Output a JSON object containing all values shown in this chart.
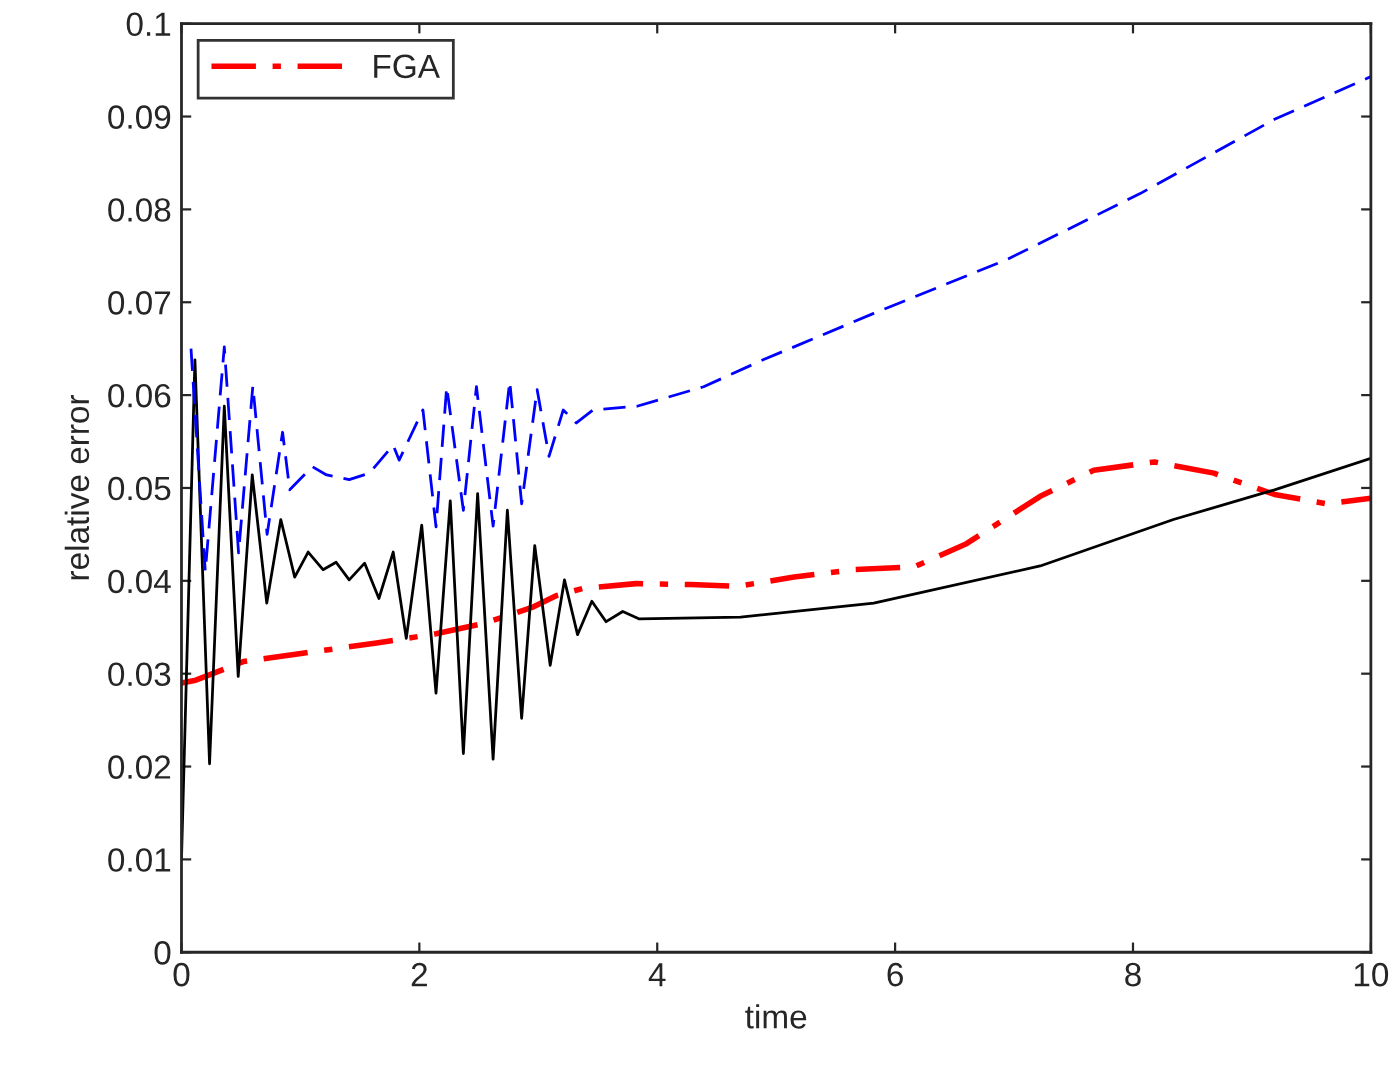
{
  "chart_data": {
    "type": "line",
    "xlabel": "time",
    "ylabel": "relative error",
    "xlim": [
      0,
      10
    ],
    "ylim": [
      0,
      0.1
    ],
    "xticks": [
      0,
      2,
      4,
      6,
      8,
      10
    ],
    "yticks": [
      0,
      0.01,
      0.02,
      0.03,
      0.04,
      0.05,
      0.06,
      0.07,
      0.08,
      0.09,
      0.1
    ],
    "grid": false,
    "legend": "top left",
    "series": [
      {
        "name": "FGA",
        "color": "#ff0000",
        "line_style": "dashdot",
        "x": [
          0,
          0.12,
          0.52,
          1.02,
          1.64,
          2.14,
          2.54,
          2.96,
          3.15,
          3.38,
          3.82,
          4.28,
          4.67,
          5.15,
          5.65,
          6.16,
          6.6,
          7.22,
          7.67,
          8.18,
          8.68,
          9.19,
          9.63,
          10
        ],
        "values": [
          0.029,
          0.0293,
          0.0313,
          0.0322,
          0.0333,
          0.0343,
          0.0354,
          0.0372,
          0.0384,
          0.0392,
          0.0397,
          0.0396,
          0.0394,
          0.0404,
          0.0412,
          0.0415,
          0.044,
          0.0491,
          0.0519,
          0.0528,
          0.0516,
          0.0493,
          0.0483,
          0.0489
        ]
      },
      {
        "color": "#000000",
        "line_style": "solid",
        "x": [
          0,
          0.113,
          0.236,
          0.36,
          0.477,
          0.595,
          0.717,
          0.835,
          0.952,
          1.065,
          1.19,
          1.3,
          1.41,
          1.54,
          1.66,
          1.78,
          1.89,
          2.02,
          2.14,
          2.26,
          2.37,
          2.49,
          2.62,
          2.74,
          2.86,
          2.97,
          3.1,
          3.22,
          3.33,
          3.45,
          3.57,
          3.71,
          3.85,
          4.7,
          5.82,
          7.22,
          8.34,
          9.19,
          10
        ],
        "values": [
          0.01,
          0.0638,
          0.0203,
          0.0588,
          0.0297,
          0.0514,
          0.0376,
          0.0466,
          0.0404,
          0.0431,
          0.0412,
          0.042,
          0.0401,
          0.0419,
          0.0381,
          0.0431,
          0.0338,
          0.046,
          0.0279,
          0.0486,
          0.0214,
          0.0494,
          0.0208,
          0.0476,
          0.0252,
          0.0438,
          0.0309,
          0.0401,
          0.0342,
          0.0378,
          0.0356,
          0.0367,
          0.0359,
          0.0361,
          0.0376,
          0.0416,
          0.0466,
          0.0498,
          0.0532
        ]
      },
      {
        "color": "#0000ff",
        "line_style": "dashed",
        "x": [
          0.08,
          0.2,
          0.36,
          0.48,
          0.6,
          0.72,
          0.85,
          0.91,
          1.1,
          1.22,
          1.41,
          1.58,
          1.78,
          1.83,
          2.03,
          2.14,
          2.23,
          2.37,
          2.48,
          2.62,
          2.76,
          2.86,
          2.99,
          3.09,
          3.21,
          3.32,
          3.46,
          3.83,
          4.39,
          4.89,
          5.82,
          6.94,
          8.06,
          9.19,
          10
        ],
        "values": [
          0.065,
          0.041,
          0.0652,
          0.043,
          0.061,
          0.045,
          0.056,
          0.0498,
          0.0523,
          0.0514,
          0.0509,
          0.0516,
          0.0546,
          0.053,
          0.0584,
          0.0458,
          0.0609,
          0.0476,
          0.0609,
          0.0459,
          0.0615,
          0.0483,
          0.0606,
          0.0534,
          0.0584,
          0.057,
          0.0584,
          0.0588,
          0.0609,
          0.0638,
          0.0688,
          0.0746,
          0.0817,
          0.0897,
          0.0943
        ]
      }
    ]
  }
}
